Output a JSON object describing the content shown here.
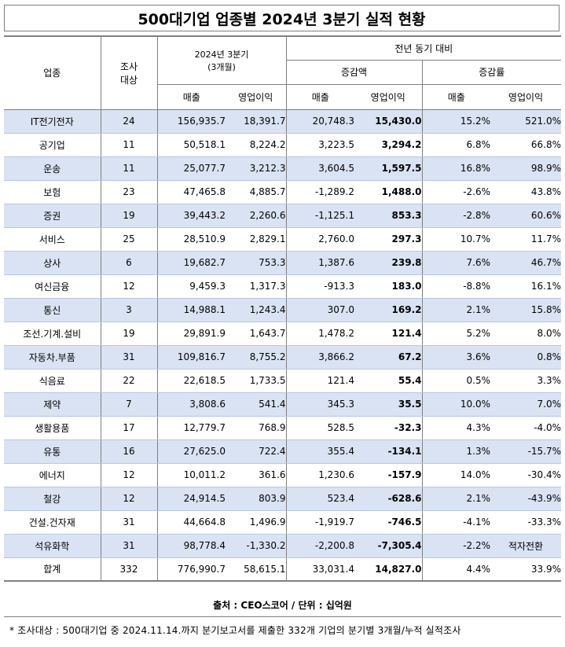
{
  "title": "500대기업 업종별 2024년 3분기 실적 현황",
  "header": {
    "industry": "업종",
    "count_line1": "조사",
    "count_line2": "대상",
    "period_line1": "2024년 3분기",
    "period_line2": "(3개월)",
    "yoy": "전년 동기 대비",
    "change_amount": "증감액",
    "change_rate": "증감률",
    "sales": "매출",
    "op_profit": "영업이익"
  },
  "rows": [
    {
      "name": "IT전기전자",
      "count": "24",
      "sales": "156,935.7",
      "op": "18,391.7",
      "d_sales": "20,748.3",
      "d_op": "15,430.0",
      "r_sales": "15.2%",
      "r_op": "521.0%"
    },
    {
      "name": "공기업",
      "count": "11",
      "sales": "50,518.1",
      "op": "8,224.2",
      "d_sales": "3,223.5",
      "d_op": "3,294.2",
      "r_sales": "6.8%",
      "r_op": "66.8%"
    },
    {
      "name": "운송",
      "count": "11",
      "sales": "25,077.7",
      "op": "3,212.3",
      "d_sales": "3,604.5",
      "d_op": "1,597.5",
      "r_sales": "16.8%",
      "r_op": "98.9%"
    },
    {
      "name": "보험",
      "count": "23",
      "sales": "47,465.8",
      "op": "4,885.7",
      "d_sales": "-1,289.2",
      "d_op": "1,488.0",
      "r_sales": "-2.6%",
      "r_op": "43.8%"
    },
    {
      "name": "증권",
      "count": "19",
      "sales": "39,443.2",
      "op": "2,260.6",
      "d_sales": "-1,125.1",
      "d_op": "853.3",
      "r_sales": "-2.8%",
      "r_op": "60.6%"
    },
    {
      "name": "서비스",
      "count": "25",
      "sales": "28,510.9",
      "op": "2,829.1",
      "d_sales": "2,760.0",
      "d_op": "297.3",
      "r_sales": "10.7%",
      "r_op": "11.7%"
    },
    {
      "name": "상사",
      "count": "6",
      "sales": "19,682.7",
      "op": "753.3",
      "d_sales": "1,387.6",
      "d_op": "239.8",
      "r_sales": "7.6%",
      "r_op": "46.7%"
    },
    {
      "name": "여신금융",
      "count": "12",
      "sales": "9,459.3",
      "op": "1,317.3",
      "d_sales": "-913.3",
      "d_op": "183.0",
      "r_sales": "-8.8%",
      "r_op": "16.1%"
    },
    {
      "name": "통신",
      "count": "3",
      "sales": "14,988.1",
      "op": "1,243.4",
      "d_sales": "307.0",
      "d_op": "169.2",
      "r_sales": "2.1%",
      "r_op": "15.8%"
    },
    {
      "name": "조선.기계.설비",
      "count": "19",
      "sales": "29,891.9",
      "op": "1,643.7",
      "d_sales": "1,478.2",
      "d_op": "121.4",
      "r_sales": "5.2%",
      "r_op": "8.0%"
    },
    {
      "name": "자동차.부품",
      "count": "31",
      "sales": "109,816.7",
      "op": "8,755.2",
      "d_sales": "3,866.2",
      "d_op": "67.2",
      "r_sales": "3.6%",
      "r_op": "0.8%"
    },
    {
      "name": "식음료",
      "count": "22",
      "sales": "22,618.5",
      "op": "1,733.5",
      "d_sales": "121.4",
      "d_op": "55.4",
      "r_sales": "0.5%",
      "r_op": "3.3%"
    },
    {
      "name": "제약",
      "count": "7",
      "sales": "3,808.6",
      "op": "541.4",
      "d_sales": "345.3",
      "d_op": "35.5",
      "r_sales": "10.0%",
      "r_op": "7.0%"
    },
    {
      "name": "생활용품",
      "count": "17",
      "sales": "12,779.7",
      "op": "768.9",
      "d_sales": "528.5",
      "d_op": "-32.3",
      "r_sales": "4.3%",
      "r_op": "-4.0%"
    },
    {
      "name": "유통",
      "count": "16",
      "sales": "27,625.0",
      "op": "722.4",
      "d_sales": "355.4",
      "d_op": "-134.1",
      "r_sales": "1.3%",
      "r_op": "-15.7%"
    },
    {
      "name": "에너지",
      "count": "12",
      "sales": "10,011.2",
      "op": "361.6",
      "d_sales": "1,230.6",
      "d_op": "-157.9",
      "r_sales": "14.0%",
      "r_op": "-30.4%"
    },
    {
      "name": "철강",
      "count": "12",
      "sales": "24,914.5",
      "op": "803.9",
      "d_sales": "523.4",
      "d_op": "-628.6",
      "r_sales": "2.1%",
      "r_op": "-43.9%"
    },
    {
      "name": "건설.건자재",
      "count": "31",
      "sales": "44,664.8",
      "op": "1,496.9",
      "d_sales": "-1,919.7",
      "d_op": "-746.5",
      "r_sales": "-4.1%",
      "r_op": "-33.3%"
    },
    {
      "name": "석유화학",
      "count": "31",
      "sales": "98,778.4",
      "op": "-1,330.2",
      "d_sales": "-2,200.8",
      "d_op": "-7,305.4",
      "r_sales": "-2.2%",
      "r_op": "적자전환"
    },
    {
      "name": "합계",
      "count": "332",
      "sales": "776,990.7",
      "op": "58,615.1",
      "d_sales": "33,031.4",
      "d_op": "14,827.0",
      "r_sales": "4.4%",
      "r_op": "33.9%"
    }
  ],
  "source": "출처 : CEO스코어 / 단위 : 십억원",
  "note": "* 조사대상 : 500대기업 중 2024.11.14.까지 분기보고서를 제출한 332개 기업의 분기별 3개월/누적 실적조사"
}
